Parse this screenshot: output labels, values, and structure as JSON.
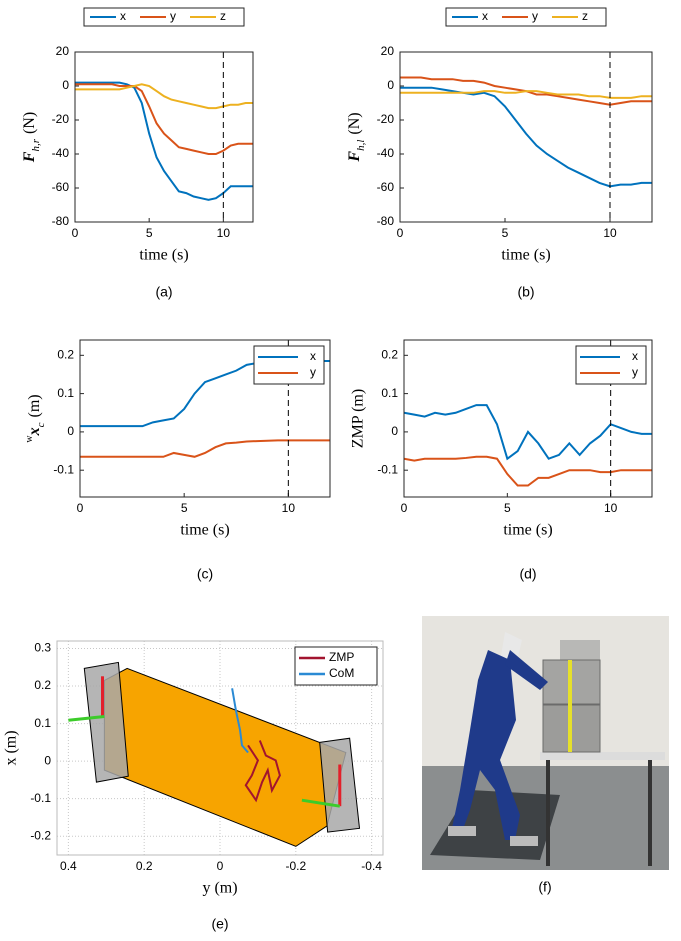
{
  "chart_data": [
    {
      "type": "line",
      "caption": "(a)",
      "xlabel": "time (s)",
      "ylabel": {
        "symbol": "F",
        "subscript": "h,r",
        "unit": "(N)"
      },
      "legend": "outside-top",
      "x": [
        0,
        0.5,
        1,
        1.5,
        2,
        2.5,
        3,
        3.5,
        4,
        4.5,
        5,
        5.5,
        6,
        6.5,
        7,
        7.5,
        8,
        8.5,
        9,
        9.5,
        10,
        10.5,
        11,
        11.5,
        12
      ],
      "series": [
        {
          "name": "x",
          "color": "#0072bd",
          "values": [
            2,
            2,
            2,
            2,
            2,
            2,
            2,
            1,
            -1,
            -10,
            -28,
            -42,
            -50,
            -56,
            -62,
            -63,
            -65,
            -66,
            -67,
            -66,
            -63,
            -59,
            -59,
            -59,
            -59
          ]
        },
        {
          "name": "y",
          "color": "#d95319",
          "values": [
            1,
            1,
            1,
            1,
            1,
            1,
            0,
            0,
            0,
            -3,
            -12,
            -22,
            -28,
            -32,
            -36,
            -37,
            -38,
            -39,
            -40,
            -40,
            -38,
            -35,
            -34,
            -34,
            -34
          ]
        },
        {
          "name": "z",
          "color": "#edb120",
          "values": [
            -2,
            -2,
            -2,
            -2,
            -2,
            -2,
            -2,
            -1,
            0,
            1,
            0,
            -3,
            -6,
            -8,
            -9,
            -10,
            -11,
            -12,
            -13,
            -13,
            -12,
            -11,
            -11,
            -10,
            -10
          ]
        }
      ],
      "xlim": [
        0,
        12
      ],
      "xticks": [
        0,
        5,
        10
      ],
      "ylim": [
        -80,
        20
      ],
      "yticks": [
        -80,
        -60,
        -40,
        -20,
        0,
        20
      ],
      "vline": 10,
      "grid": false
    },
    {
      "type": "line",
      "caption": "(b)",
      "xlabel": "time (s)",
      "ylabel": {
        "symbol": "F",
        "subscript": "h,l",
        "unit": "(N)"
      },
      "legend": "outside-top",
      "x": [
        0,
        0.5,
        1,
        1.5,
        2,
        2.5,
        3,
        3.5,
        4,
        4.5,
        5,
        5.5,
        6,
        6.5,
        7,
        7.5,
        8,
        8.5,
        9,
        9.5,
        10,
        10.5,
        11,
        11.5,
        12
      ],
      "series": [
        {
          "name": "x",
          "color": "#0072bd",
          "values": [
            -1,
            -1,
            -1,
            -1,
            -2,
            -3,
            -4,
            -5,
            -4,
            -6,
            -12,
            -20,
            -28,
            -35,
            -40,
            -44,
            -48,
            -51,
            -54,
            -57,
            -59,
            -58,
            -58,
            -57,
            -57
          ]
        },
        {
          "name": "y",
          "color": "#d95319",
          "values": [
            5,
            5,
            5,
            4,
            4,
            4,
            3,
            3,
            2,
            0,
            -1,
            -2,
            -3,
            -5,
            -5,
            -6,
            -7,
            -8,
            -9,
            -10,
            -11,
            -10,
            -9,
            -9,
            -9
          ]
        },
        {
          "name": "z",
          "color": "#edb120",
          "values": [
            -4,
            -4,
            -4,
            -4,
            -4,
            -4,
            -4,
            -4,
            -3,
            -3,
            -4,
            -4,
            -3,
            -3,
            -4,
            -5,
            -5,
            -5,
            -6,
            -6,
            -7,
            -7,
            -7,
            -6,
            -6
          ]
        }
      ],
      "xlim": [
        0,
        12
      ],
      "xticks": [
        0,
        5,
        10
      ],
      "ylim": [
        -80,
        20
      ],
      "yticks": [
        -80,
        -60,
        -40,
        -20,
        0,
        20
      ],
      "vline": 10,
      "grid": false
    },
    {
      "type": "line",
      "caption": "(c)",
      "xlabel": "time (s)",
      "ylabel": {
        "superscript": "w",
        "symbol": "x",
        "subscript": "c",
        "unit": "(m)"
      },
      "legend": "upper-right",
      "x": [
        0,
        0.5,
        1,
        1.5,
        2,
        2.5,
        3,
        3.5,
        4,
        4.5,
        5,
        5.5,
        6,
        6.5,
        7,
        7.5,
        8,
        8.5,
        9,
        9.5,
        10,
        10.5,
        11,
        11.5,
        12
      ],
      "series": [
        {
          "name": "x",
          "color": "#0072bd",
          "values": [
            0.015,
            0.015,
            0.015,
            0.015,
            0.015,
            0.015,
            0.015,
            0.025,
            0.03,
            0.035,
            0.06,
            0.1,
            0.13,
            0.14,
            0.15,
            0.16,
            0.175,
            0.18,
            0.185,
            0.185,
            0.185,
            0.185,
            0.185,
            0.185,
            0.185
          ]
        },
        {
          "name": "y",
          "color": "#d95319",
          "values": [
            -0.065,
            -0.065,
            -0.065,
            -0.065,
            -0.065,
            -0.065,
            -0.065,
            -0.065,
            -0.065,
            -0.055,
            -0.06,
            -0.065,
            -0.055,
            -0.04,
            -0.03,
            -0.028,
            -0.025,
            -0.024,
            -0.023,
            -0.022,
            -0.022,
            -0.022,
            -0.022,
            -0.022,
            -0.022
          ]
        }
      ],
      "xlim": [
        0,
        12
      ],
      "xticks": [
        0,
        5,
        10
      ],
      "ylim": [
        -0.17,
        0.24
      ],
      "yticks": [
        -0.1,
        0,
        0.1,
        0.2
      ],
      "vline": 10,
      "grid": false
    },
    {
      "type": "line",
      "caption": "(d)",
      "xlabel": "time (s)",
      "ylabel": "ZMP (m)",
      "legend": "upper-right",
      "x": [
        0,
        0.5,
        1,
        1.5,
        2,
        2.5,
        3,
        3.5,
        4,
        4.5,
        5,
        5.5,
        6,
        6.5,
        7,
        7.5,
        8,
        8.5,
        9,
        9.5,
        10,
        10.5,
        11,
        11.5,
        12
      ],
      "series": [
        {
          "name": "x",
          "color": "#0072bd",
          "values": [
            0.05,
            0.045,
            0.04,
            0.05,
            0.045,
            0.05,
            0.06,
            0.07,
            0.07,
            0.02,
            -0.07,
            -0.05,
            0.0,
            -0.03,
            -0.07,
            -0.06,
            -0.03,
            -0.06,
            -0.03,
            -0.01,
            0.02,
            0.01,
            0.0,
            -0.005,
            -0.005
          ]
        },
        {
          "name": "y",
          "color": "#d95319",
          "values": [
            -0.07,
            -0.075,
            -0.07,
            -0.07,
            -0.07,
            -0.07,
            -0.068,
            -0.065,
            -0.065,
            -0.07,
            -0.11,
            -0.14,
            -0.14,
            -0.12,
            -0.12,
            -0.11,
            -0.1,
            -0.1,
            -0.1,
            -0.105,
            -0.105,
            -0.1,
            -0.1,
            -0.1,
            -0.1
          ]
        }
      ],
      "xlim": [
        0,
        12
      ],
      "xticks": [
        0,
        5,
        10
      ],
      "ylim": [
        -0.17,
        0.24
      ],
      "yticks": [
        -0.1,
        0,
        0.1,
        0.2
      ],
      "vline": 10,
      "grid": false
    },
    {
      "type": "xyline",
      "caption": "(e)",
      "xlabel": "y (m)",
      "ylabel": "x (m)",
      "legend": "upper-right",
      "overlays": [
        {
          "shape": "polygon",
          "color": "#f7a400",
          "x": [
            0.305,
            0.245,
            -0.332,
            -0.282,
            -0.2,
            0.305
          ],
          "y": [
            0.215,
            0.247,
            0.023,
            -0.173,
            -0.227,
            -0.024
          ]
        },
        {
          "shape": "polygon",
          "color": "#a8a8a8",
          "x": [
            0.358,
            0.268,
            0.242,
            0.326
          ],
          "y": [
            0.247,
            0.263,
            -0.04,
            -0.056
          ]
        },
        {
          "shape": "polygon",
          "color": "#a8a8a8",
          "x": [
            -0.263,
            -0.342,
            -0.368,
            -0.284
          ],
          "y": [
            0.05,
            0.061,
            -0.179,
            -0.189
          ]
        },
        {
          "shape": "line",
          "color": "#e3202a",
          "x": [
            0.31,
            0.31
          ],
          "y": [
            0.226,
            0.119
          ]
        },
        {
          "shape": "line",
          "color": "#e3202a",
          "x": [
            -0.316,
            -0.316
          ],
          "y": [
            -0.009,
            -0.12
          ]
        },
        {
          "shape": "line",
          "color": "#3ccc2a",
          "x": [
            0.4,
            0.305
          ],
          "y": [
            0.109,
            0.119
          ]
        },
        {
          "shape": "line",
          "color": "#3ccc2a",
          "x": [
            -0.216,
            -0.316
          ],
          "y": [
            -0.104,
            -0.12
          ]
        }
      ],
      "series": [
        {
          "name": "ZMP",
          "color": "#a2142f",
          "x": [
            -0.074,
            -0.1,
            -0.084,
            -0.068,
            -0.095,
            -0.111,
            -0.126,
            -0.137,
            -0.158,
            -0.147,
            -0.121,
            -0.105
          ],
          "values": [
            0.042,
            0.002,
            -0.038,
            -0.064,
            -0.104,
            -0.056,
            -0.024,
            -0.078,
            -0.038,
            0.002,
            0.015,
            0.055
          ]
        },
        {
          "name": "CoM",
          "color": "#2a8ad4",
          "x": [
            -0.032,
            -0.042,
            -0.053,
            -0.058,
            -0.074
          ],
          "values": [
            0.194,
            0.135,
            0.082,
            0.042,
            0.023
          ]
        }
      ],
      "xlim": [
        0.43,
        -0.43
      ],
      "xticks": [
        0.4,
        0.2,
        0,
        -0.2,
        -0.4
      ],
      "ylim": [
        -0.25,
        0.32
      ],
      "yticks": [
        -0.2,
        -0.1,
        0,
        0.1,
        0.2,
        0.3
      ],
      "grid": true
    }
  ],
  "figure": {
    "caption": "(f)"
  }
}
